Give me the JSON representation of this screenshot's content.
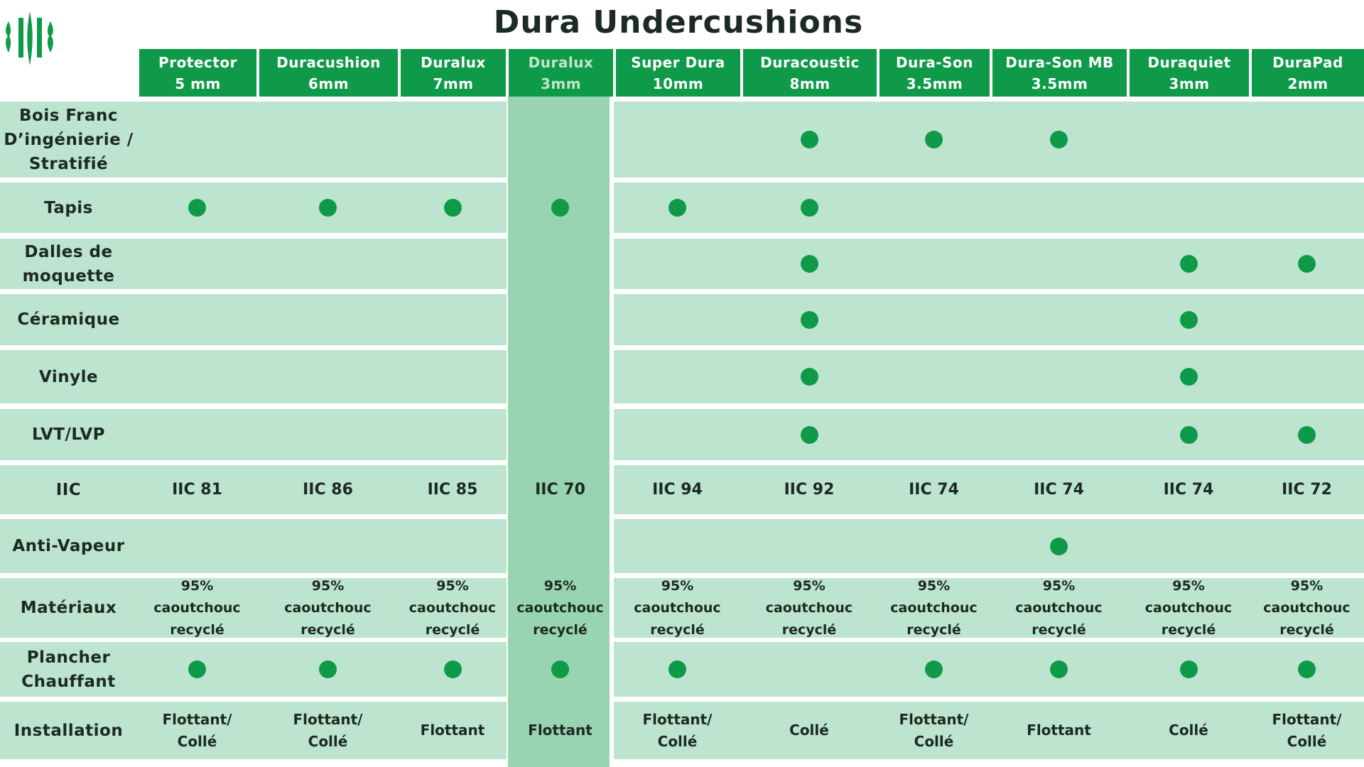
{
  "title": "Dura Undercushions",
  "brand": {
    "logo_icon": "dura-stripes-logo",
    "green": "#0e9a48",
    "row_bg": "#bde4cf",
    "highlight_bg": "#98d4b0"
  },
  "columns": [
    {
      "name": "Protector",
      "size": "5 mm"
    },
    {
      "name": "Duracushion",
      "size": "6mm"
    },
    {
      "name": "Duralux",
      "size": "7mm"
    },
    {
      "name": "Duralux",
      "size": "3mm",
      "highlight": true
    },
    {
      "name": "Super Dura",
      "size": "10mm"
    },
    {
      "name": "Duracoustic",
      "size": "8mm"
    },
    {
      "name": "Dura-Son",
      "size": "3.5mm"
    },
    {
      "name": "Dura-Son MB",
      "size": "3.5mm"
    },
    {
      "name": "Duraquiet",
      "size": "3mm"
    },
    {
      "name": "DuraPad",
      "size": "2mm"
    }
  ],
  "rows": [
    {
      "label": [
        "Bois Franc",
        "D’ingénierie /",
        "Stratifié"
      ],
      "type": "dots",
      "values": [
        0,
        0,
        0,
        0,
        0,
        1,
        1,
        1,
        0,
        0
      ]
    },
    {
      "label": [
        "Tapis"
      ],
      "type": "dots",
      "values": [
        1,
        1,
        1,
        1,
        1,
        1,
        0,
        0,
        0,
        0
      ]
    },
    {
      "label": [
        "Dalles de",
        "moquette"
      ],
      "type": "dots",
      "values": [
        0,
        0,
        0,
        0,
        0,
        1,
        0,
        0,
        1,
        1
      ]
    },
    {
      "label": [
        "Céramique"
      ],
      "type": "dots",
      "values": [
        0,
        0,
        0,
        0,
        0,
        1,
        0,
        0,
        1,
        0
      ]
    },
    {
      "label": [
        "Vinyle"
      ],
      "type": "dots",
      "values": [
        0,
        0,
        0,
        0,
        0,
        1,
        0,
        0,
        1,
        0
      ]
    },
    {
      "label": [
        "LVT/LVP"
      ],
      "type": "dots",
      "values": [
        0,
        0,
        0,
        0,
        0,
        1,
        0,
        0,
        1,
        1
      ]
    },
    {
      "label": [
        "IIC"
      ],
      "type": "text",
      "values": [
        "IIC 81",
        "IIC 86",
        "IIC 85",
        "IIC 70",
        "IIC 94",
        "IIC 92",
        "IIC 74",
        "IIC 74",
        "IIC 74",
        "IIC 72"
      ]
    },
    {
      "label": [
        "Anti-Vapeur"
      ],
      "type": "dots",
      "values": [
        0,
        0,
        0,
        0,
        0,
        0,
        0,
        1,
        0,
        0
      ]
    },
    {
      "label": [
        "Matériaux"
      ],
      "type": "mat",
      "values": [
        "95%\ncaoutchouc\nrecyclé",
        "95%\ncaoutchouc\nrecyclé",
        "95%\ncaoutchouc\nrecyclé",
        "95%\ncaoutchouc\nrecyclé",
        "95%\ncaoutchouc\nrecyclé",
        "95%\ncaoutchouc\nrecyclé",
        "95%\ncaoutchouc\nrecyclé",
        "95%\ncaoutchouc\nrecyclé",
        "95%\ncaoutchouc\nrecyclé",
        "95%\ncaoutchouc\nrecyclé"
      ]
    },
    {
      "label": [
        "Plancher",
        "Chauffant"
      ],
      "type": "dots",
      "values": [
        1,
        1,
        1,
        1,
        1,
        0,
        1,
        1,
        1,
        1
      ]
    },
    {
      "label": [
        "Installation"
      ],
      "type": "inst",
      "values": [
        "Flottant/\nCollé",
        "Flottant/\nCollé",
        "Flottant",
        "Flottant",
        "Flottant/\nCollé",
        "Collé",
        "Flottant/\nCollé",
        "Flottant",
        "Collé",
        "Flottant/\nCollé"
      ]
    }
  ]
}
